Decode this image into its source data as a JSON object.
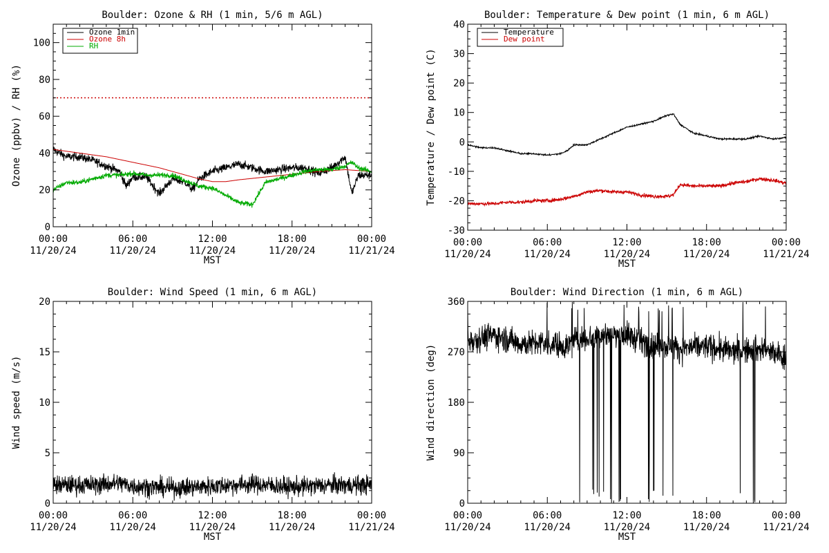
{
  "chart_data": [
    {
      "type": "line",
      "title": "Boulder: Ozone & RH (1 min, 5/6 m AGL)",
      "xlabel": "MST",
      "ylabel": "Ozone (ppbv) / RH (%)",
      "xlim": [
        0,
        24
      ],
      "ylim": [
        0,
        110
      ],
      "xticks": [
        {
          "time": "00:00",
          "date": "11/20/24"
        },
        {
          "time": "06:00",
          "date": "11/20/24"
        },
        {
          "time": "12:00",
          "date": "11/20/24"
        },
        {
          "time": "18:00",
          "date": "11/20/24"
        },
        {
          "time": "00:00",
          "date": "11/21/24"
        }
      ],
      "yticks": [
        0,
        20,
        40,
        60,
        80,
        100
      ],
      "legend_position": "top-left",
      "grid": false,
      "reference_line": {
        "y": 70,
        "color": "#cc0000",
        "style": "dotted"
      },
      "series": [
        {
          "name": "Ozone 1min",
          "color": "#000000",
          "noise": 2.2,
          "x": [
            0,
            1,
            2,
            3,
            4,
            5,
            5.5,
            6,
            7,
            8,
            8.5,
            9,
            10,
            10.5,
            11,
            12,
            13,
            14,
            15,
            16,
            17,
            18,
            19,
            20,
            21,
            22,
            22.5,
            23,
            24
          ],
          "y": [
            42,
            38,
            38,
            36,
            33,
            30,
            22,
            27,
            27,
            18,
            22,
            26,
            24,
            20,
            26,
            30,
            32,
            34,
            32,
            30,
            31,
            32,
            32,
            29,
            32,
            38,
            18,
            28,
            28
          ]
        },
        {
          "name": "Ozone 8h",
          "color": "#cc0000",
          "noise": 0,
          "x": [
            0,
            2,
            4,
            6,
            8,
            10,
            11,
            12,
            13,
            14,
            16,
            18,
            20,
            22,
            24
          ],
          "y": [
            42,
            40,
            38,
            35,
            32,
            28,
            26,
            24.5,
            24.5,
            25.5,
            27,
            28.5,
            30,
            31,
            30
          ]
        },
        {
          "name": "RH",
          "color": "#00aa00",
          "noise": 1.3,
          "x": [
            0,
            0.5,
            1,
            2,
            3,
            4,
            5,
            6,
            7,
            8,
            9,
            10,
            11,
            12,
            13,
            14,
            15,
            15.5,
            16,
            17,
            18,
            19,
            20,
            21,
            22,
            22.5,
            23,
            24
          ],
          "y": [
            20,
            22,
            24,
            24,
            26,
            28,
            28,
            29,
            28,
            28,
            28,
            25,
            22,
            21,
            17,
            13,
            12,
            18,
            24,
            26,
            28,
            30,
            31,
            31,
            33,
            35,
            32,
            30
          ]
        }
      ]
    },
    {
      "type": "line",
      "title": "Boulder: Temperature & Dew point (1 min, 6 m AGL)",
      "xlabel": "MST",
      "ylabel": "Temperature / Dew point (C)",
      "xlim": [
        0,
        24
      ],
      "ylim": [
        -30,
        40
      ],
      "xticks": [
        {
          "time": "00:00",
          "date": "11/20/24"
        },
        {
          "time": "06:00",
          "date": "11/20/24"
        },
        {
          "time": "12:00",
          "date": "11/20/24"
        },
        {
          "time": "18:00",
          "date": "11/20/24"
        },
        {
          "time": "00:00",
          "date": "11/21/24"
        }
      ],
      "yticks": [
        -30,
        -20,
        -10,
        0,
        10,
        20,
        30,
        40
      ],
      "legend_position": "top-left",
      "grid": false,
      "series": [
        {
          "name": "Temperature",
          "color": "#000000",
          "noise": 0.25,
          "x": [
            0,
            1,
            2,
            3,
            4,
            5,
            6,
            7,
            7.5,
            8,
            9,
            10,
            11,
            12,
            13,
            14,
            15,
            15.5,
            16,
            17,
            18,
            19,
            20,
            21,
            22,
            23,
            24
          ],
          "y": [
            -1,
            -2,
            -2,
            -3,
            -4,
            -4,
            -4.5,
            -4,
            -3,
            -1,
            -1,
            1,
            3,
            5,
            6,
            7,
            9,
            9.5,
            6,
            3,
            2,
            1,
            1,
            1,
            2,
            1,
            1.5
          ]
        },
        {
          "name": "Dew point",
          "color": "#cc0000",
          "noise": 0.6,
          "x": [
            0,
            1,
            2,
            3,
            4,
            5,
            6,
            7,
            8,
            9,
            10,
            11,
            12,
            13,
            14,
            15,
            15.5,
            16,
            17,
            18,
            19,
            20,
            21,
            22,
            23,
            24
          ],
          "y": [
            -21,
            -21,
            -21,
            -20.5,
            -20.5,
            -20,
            -20,
            -19.5,
            -18.5,
            -17,
            -16.5,
            -17,
            -17,
            -18,
            -18.5,
            -18.5,
            -18,
            -14.5,
            -15,
            -15,
            -15,
            -14,
            -13.5,
            -12.5,
            -13,
            -14
          ]
        }
      ]
    },
    {
      "type": "line",
      "title": "Boulder: Wind Speed (1 min, 6 m AGL)",
      "xlabel": "MST",
      "ylabel": "Wind speed (m/s)",
      "xlim": [
        0,
        24
      ],
      "ylim": [
        0,
        20
      ],
      "xticks": [
        {
          "time": "00:00",
          "date": "11/20/24"
        },
        {
          "time": "06:00",
          "date": "11/20/24"
        },
        {
          "time": "12:00",
          "date": "11/20/24"
        },
        {
          "time": "18:00",
          "date": "11/20/24"
        },
        {
          "time": "00:00",
          "date": "11/21/24"
        }
      ],
      "yticks": [
        0,
        5,
        10,
        15,
        20
      ],
      "grid": false,
      "series": [
        {
          "name": "",
          "color": "#000000",
          "noise": 0.9,
          "clip_min": 0,
          "x": [
            0,
            3,
            5,
            6,
            9,
            12,
            15,
            18,
            21,
            24
          ],
          "y": [
            1.8,
            1.8,
            2.0,
            1.7,
            1.5,
            1.7,
            1.9,
            1.6,
            1.8,
            1.8
          ]
        }
      ]
    },
    {
      "type": "line",
      "title": "Boulder: Wind Direction (1 min, 6 m AGL)",
      "xlabel": "MST",
      "ylabel": "Wind direction (deg)",
      "xlim": [
        0,
        24
      ],
      "ylim": [
        0,
        360
      ],
      "xticks": [
        {
          "time": "00:00",
          "date": "11/20/24"
        },
        {
          "time": "06:00",
          "date": "11/20/24"
        },
        {
          "time": "12:00",
          "date": "11/20/24"
        },
        {
          "time": "18:00",
          "date": "11/20/24"
        },
        {
          "time": "00:00",
          "date": "11/21/24"
        }
      ],
      "yticks": [
        0,
        90,
        180,
        270,
        360
      ],
      "grid": false,
      "series": [
        {
          "name": "",
          "color": "#000000",
          "noise": 22,
          "clip_min": 0,
          "clip_max": 360,
          "spikes": true,
          "x": [
            0,
            2,
            4,
            6,
            7.5,
            8,
            10,
            12,
            14,
            15.5,
            16,
            18,
            20,
            22,
            24
          ],
          "y": [
            290,
            300,
            285,
            285,
            280,
            290,
            300,
            300,
            280,
            280,
            275,
            280,
            270,
            275,
            260
          ]
        }
      ]
    }
  ]
}
